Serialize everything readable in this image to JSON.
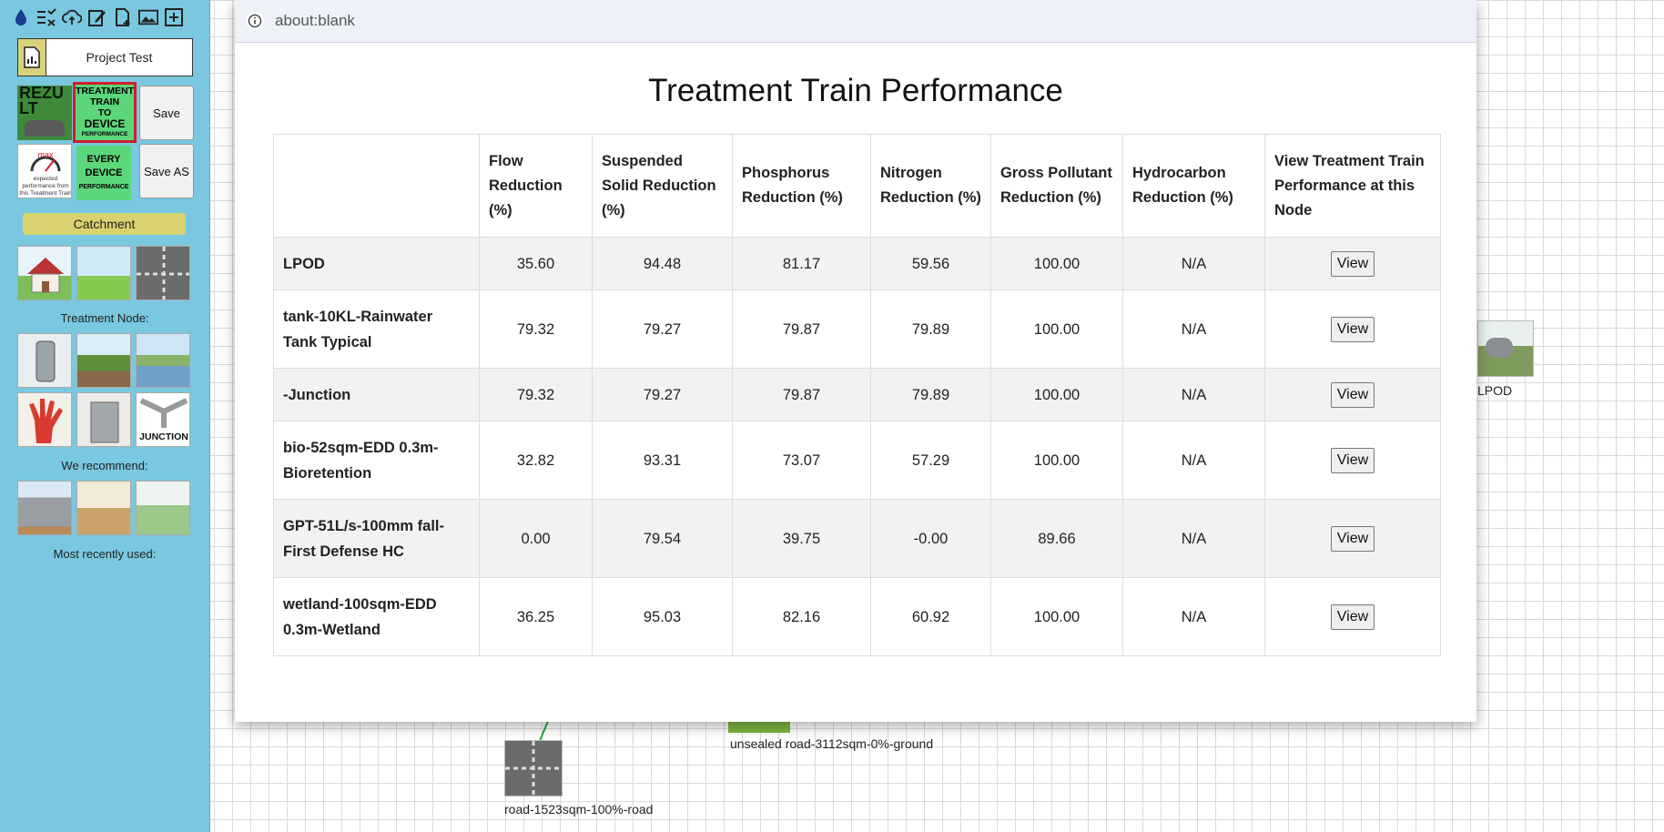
{
  "sidebar": {
    "toolbar_icons": [
      "drop-icon",
      "list-check-icon",
      "cloud-upload-icon",
      "edit-icon",
      "new-file-icon",
      "image-icon",
      "add-window-icon"
    ],
    "project_name": "Project Test",
    "rezult_label": "REZULT",
    "treatment_train_tile": [
      "TREATMENT",
      "TRAIN",
      "TO",
      "DEVICE",
      "PERFORMANCE"
    ],
    "save_label": "Save",
    "gauge_max_label": "max",
    "gauge_caption": "expected performance from this Treatment Train",
    "every_device_tile": [
      "EVERY",
      "DEVICE",
      "PERFORMANCE"
    ],
    "save_as_label": "Save AS",
    "catchment_label": "Catchment",
    "treatment_node_label": "Treatment Node:",
    "junction_label": "JUNCTION",
    "recommend_label": "We recommend:",
    "recent_label": "Most recently used:"
  },
  "popup": {
    "url": "about:blank",
    "title": "Treatment Train Performance",
    "columns": [
      "",
      "Flow Reduction (%)",
      "Suspended Solid Reduction (%)",
      "Phosphorus Reduction (%)",
      "Nitrogen Reduction (%)",
      "Gross Pollutant Reduction (%)",
      "Hydrocarbon Reduction (%)",
      "View Treatment Train Performance at this Node"
    ],
    "rows": [
      {
        "name": "LPOD",
        "flow": "35.60",
        "ss": "94.48",
        "phos": "81.17",
        "nit": "59.56",
        "gross": "100.00",
        "hydro": "N/A",
        "btn": "View"
      },
      {
        "name": "tank-10KL-Rainwater Tank Typical",
        "flow": "79.32",
        "ss": "79.27",
        "phos": "79.87",
        "nit": "79.89",
        "gross": "100.00",
        "hydro": "N/A",
        "btn": "View"
      },
      {
        "name": "-Junction",
        "flow": "79.32",
        "ss": "79.27",
        "phos": "79.87",
        "nit": "79.89",
        "gross": "100.00",
        "hydro": "N/A",
        "btn": "View"
      },
      {
        "name": "bio-52sqm-EDD 0.3m-Bioretention",
        "flow": "32.82",
        "ss": "93.31",
        "phos": "73.07",
        "nit": "57.29",
        "gross": "100.00",
        "hydro": "N/A",
        "btn": "View"
      },
      {
        "name": "GPT-51L/s-100mm fall-First Defense HC",
        "flow": "0.00",
        "ss": "79.54",
        "phos": "39.75",
        "nit": "-0.00",
        "gross": "89.66",
        "hydro": "N/A",
        "btn": "View"
      },
      {
        "name": "wetland-100sqm-EDD 0.3m-Wetland",
        "flow": "36.25",
        "ss": "95.03",
        "phos": "82.16",
        "nit": "60.92",
        "gross": "100.00",
        "hydro": "N/A",
        "btn": "View"
      }
    ]
  },
  "canvas": {
    "lpod_label": "LPOD",
    "unsealed_label": "unsealed road-3112sqm-0%-ground",
    "road_label": "road-1523sqm-100%-road"
  }
}
